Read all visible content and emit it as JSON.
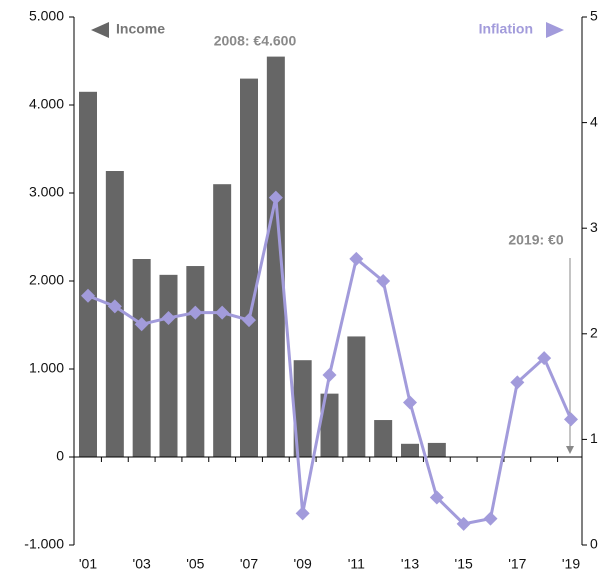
{
  "chart_data": {
    "type": "bar_line",
    "annotations": {
      "income": "Income",
      "inflation": "Inflation",
      "peak": "2008: €4.600",
      "last": "2019: €0"
    },
    "categories": [
      "'01",
      null,
      "'03",
      null,
      "'05",
      null,
      "'07",
      null,
      "'09",
      null,
      "'11",
      null,
      "'13",
      null,
      "'15",
      null,
      "'17",
      null,
      "'19"
    ],
    "series": [
      {
        "name": "Income",
        "color": "#666666",
        "values": [
          4150,
          3250,
          2250,
          2070,
          2170,
          3100,
          4300,
          4550,
          1100,
          720,
          1370,
          420,
          150,
          160,
          0,
          0,
          0,
          0,
          0
        ]
      },
      {
        "name": "Inflation",
        "color": "#a29bdb",
        "axis": "y2",
        "values": [
          2.36,
          2.26,
          2.09,
          2.15,
          2.2,
          2.2,
          2.13,
          3.29,
          0.3,
          1.61,
          2.71,
          2.5,
          1.35,
          0.45,
          0.2,
          0.25,
          1.54,
          1.77,
          1.19
        ]
      }
    ],
    "ylim": [
      -1000,
      5000
    ],
    "yticks": [
      {
        "value": -1000,
        "label": "-1.000"
      },
      0,
      {
        "value": 1000,
        "label": "1.000"
      },
      {
        "value": 2000,
        "label": "2.000"
      },
      {
        "value": 3000,
        "label": "3.000"
      },
      {
        "value": 4000,
        "label": "4.000"
      },
      {
        "value": 5000,
        "label": "5.000"
      }
    ],
    "y2lim": [
      0,
      5
    ],
    "y2ticks": [
      0,
      1,
      2,
      3,
      4,
      5
    ]
  }
}
